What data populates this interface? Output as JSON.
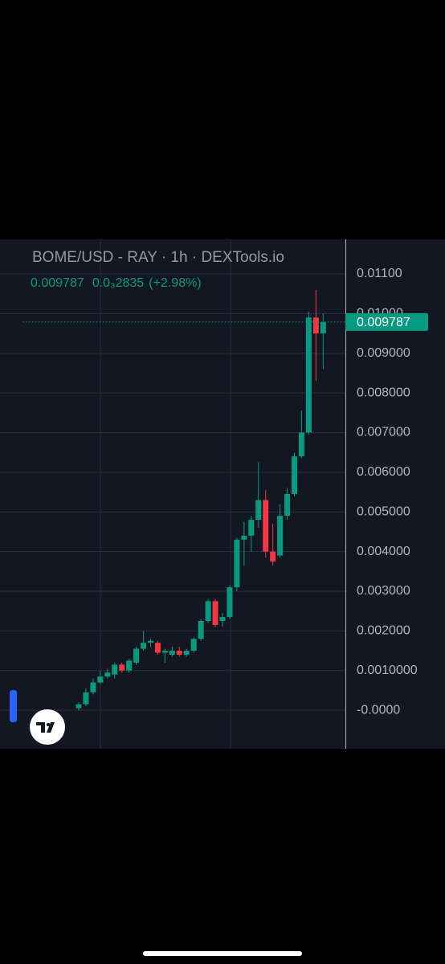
{
  "chart_data": {
    "type": "candlestick",
    "title": "BOME/USD - RAY · 1h · DEXTools.io",
    "change": "0.0₃2835",
    "change_percent": "(+2.98%)",
    "open": [
      5e-05,
      0.00015,
      0.00045,
      0.0007,
      0.00085,
      0.0009,
      0.00115,
      0.001,
      0.0012,
      0.00155,
      0.0017,
      0.0017,
      0.00145,
      0.0014,
      0.0015,
      0.0014,
      0.0015,
      0.0018,
      0.00225,
      0.00275,
      0.00225,
      0.00235,
      0.0031,
      0.0043,
      0.0044,
      0.0048,
      0.0053,
      0.004,
      0.0039,
      0.0049,
      0.00545,
      0.0064,
      0.007,
      0.0099,
      0.0095
    ],
    "high": [
      0.0002,
      0.00055,
      0.0008,
      0.001,
      0.00105,
      0.0012,
      0.0012,
      0.0013,
      0.0016,
      0.002,
      0.0018,
      0.00175,
      0.00155,
      0.0016,
      0.0016,
      0.00155,
      0.00185,
      0.0023,
      0.0028,
      0.0028,
      0.00245,
      0.00315,
      0.00435,
      0.00475,
      0.0049,
      0.00625,
      0.00555,
      0.0047,
      0.0052,
      0.0056,
      0.0065,
      0.00755,
      0.01005,
      0.0106,
      0.01
    ],
    "low": [
      0.0,
      0.0001,
      0.0004,
      0.00065,
      0.0008,
      0.0008,
      0.00095,
      0.00095,
      0.00115,
      0.0015,
      0.0016,
      0.0014,
      0.0012,
      0.00135,
      0.00135,
      0.00135,
      0.00145,
      0.00175,
      0.0022,
      0.0021,
      0.0021,
      0.0023,
      0.003,
      0.00365,
      0.004,
      0.0046,
      0.00385,
      0.00365,
      0.00385,
      0.0048,
      0.0054,
      0.00635,
      0.00695,
      0.0083,
      0.0086
    ],
    "close": [
      0.00015,
      0.00045,
      0.0007,
      0.00085,
      0.00095,
      0.00115,
      0.001,
      0.00125,
      0.00155,
      0.0017,
      0.00175,
      0.00145,
      0.0015,
      0.0015,
      0.0014,
      0.0015,
      0.0018,
      0.00225,
      0.00275,
      0.00215,
      0.00235,
      0.0031,
      0.0043,
      0.0044,
      0.0048,
      0.0053,
      0.004,
      0.00375,
      0.0049,
      0.00545,
      0.0064,
      0.007,
      0.0099,
      0.0095,
      0.009787
    ],
    "up_color": "#089981",
    "down_color": "#f23645",
    "ylim": [
      -0.00097,
      0.01187
    ],
    "yticks": [
      {
        "value": 0.011,
        "label": "0.01100"
      },
      {
        "value": 0.01,
        "label": "0.01000"
      },
      {
        "value": 0.009,
        "label": "0.009000"
      },
      {
        "value": 0.008,
        "label": "0.008000"
      },
      {
        "value": 0.007,
        "label": "0.007000"
      },
      {
        "value": 0.006,
        "label": "0.006000"
      },
      {
        "value": 0.005,
        "label": "0.005000"
      },
      {
        "value": 0.004,
        "label": "0.004000"
      },
      {
        "value": 0.003,
        "label": "0.003000"
      },
      {
        "value": 0.002,
        "label": "0.002000"
      },
      {
        "value": 0.001,
        "label": "0.0010000"
      },
      {
        "value": 0,
        "label": "-0.0000"
      }
    ],
    "grid": true
  }
}
